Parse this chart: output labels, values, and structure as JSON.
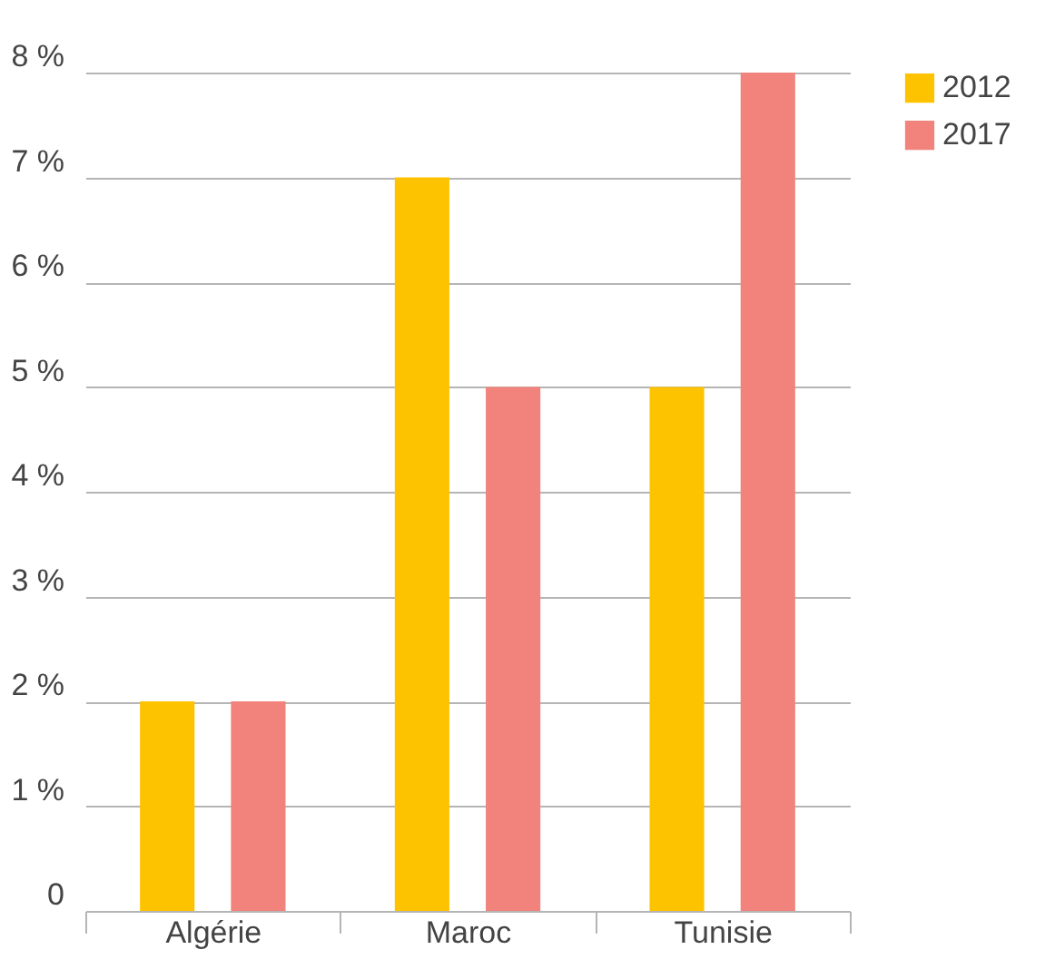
{
  "chart_data": {
    "type": "bar",
    "categories": [
      "Algérie",
      "Maroc",
      "Tunisie"
    ],
    "series": [
      {
        "name": "2012",
        "color": "#fdc300",
        "values": [
          2,
          7,
          5
        ]
      },
      {
        "name": "2017",
        "color": "#f1837c",
        "values": [
          2,
          5,
          8
        ]
      }
    ],
    "ylim": [
      0,
      8
    ],
    "yticks": [
      0,
      {
        "value": 1,
        "label": "1 %"
      },
      {
        "value": 2,
        "label": "2 %"
      },
      {
        "value": 3,
        "label": "3 %"
      },
      {
        "value": 4,
        "label": "4 %"
      },
      {
        "value": 5,
        "label": "5 %"
      },
      {
        "value": 6,
        "label": "6 %"
      },
      {
        "value": 7,
        "label": "7 %"
      },
      {
        "value": 8,
        "label": "8 %"
      }
    ],
    "grid": "y",
    "legend": "right"
  }
}
